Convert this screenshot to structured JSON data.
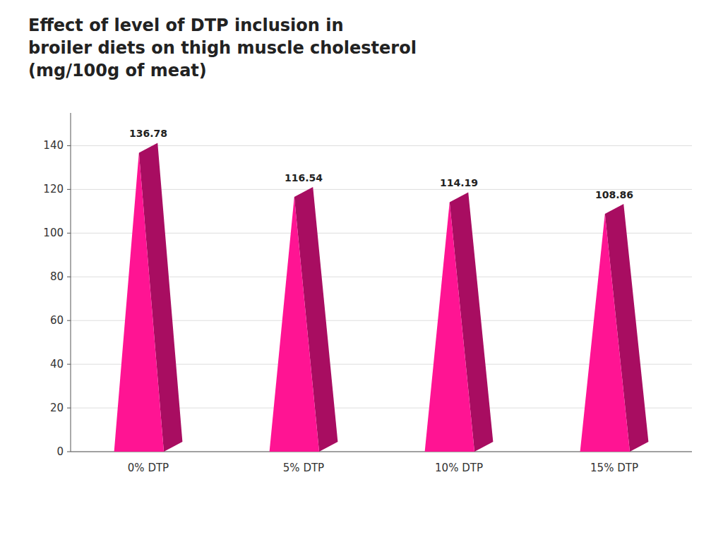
{
  "chart_data": {
    "type": "bar",
    "title": [
      "Effect of level of DTP inclusion in",
      "broiler diets on thigh muscle cholesterol",
      "(mg/100g of meat)"
    ],
    "categories": [
      "0% DTP",
      "5% DTP",
      "10% DTP",
      "15% DTP"
    ],
    "values": [
      136.78,
      116.54,
      114.19,
      108.86
    ],
    "color": "#FF1493",
    "ylim": [
      0,
      155
    ],
    "yticks": [
      0,
      20,
      40,
      60,
      80,
      100,
      120,
      140
    ],
    "grid": true,
    "data_labels": true
  }
}
